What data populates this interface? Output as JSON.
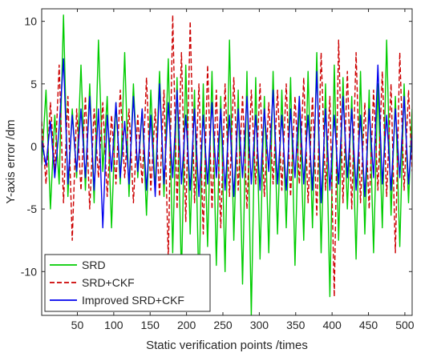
{
  "chart_data": {
    "type": "line",
    "xlabel": "Static verification points /times",
    "ylabel": "Y-axis error /dm",
    "xlim": [
      1,
      510
    ],
    "ylim": [
      -13.5,
      11
    ],
    "xticks": [
      50,
      100,
      150,
      200,
      250,
      300,
      350,
      400,
      450,
      500
    ],
    "yticks": [
      -10,
      -5,
      0,
      5,
      10
    ],
    "grid": false,
    "legend_position": "bottom-left",
    "series": [
      {
        "name": "SRD",
        "color": "#00cc00",
        "line_style": "solid",
        "x": [
          1,
          7,
          13,
          19,
          25,
          31,
          37,
          43,
          49,
          55,
          61,
          67,
          73,
          79,
          85,
          91,
          97,
          103,
          109,
          115,
          121,
          127,
          133,
          139,
          145,
          151,
          157,
          163,
          169,
          175,
          181,
          187,
          193,
          199,
          205,
          211,
          217,
          223,
          229,
          235,
          241,
          247,
          253,
          259,
          265,
          271,
          277,
          283,
          289,
          295,
          301,
          307,
          313,
          319,
          325,
          331,
          337,
          343,
          349,
          355,
          361,
          367,
          373,
          379,
          385,
          391,
          397,
          403,
          409,
          415,
          421,
          427,
          433,
          439,
          445,
          451,
          457,
          463,
          469,
          475,
          481,
          487,
          493,
          499,
          505,
          510
        ],
        "y": [
          -1.5,
          4.5,
          -5.0,
          2.5,
          -3.0,
          10.5,
          -4.0,
          3.0,
          -2.5,
          6.5,
          -3.5,
          5.0,
          -4.5,
          8.5,
          -2.0,
          4.0,
          -6.5,
          3.5,
          -3.0,
          7.5,
          -4.0,
          5.0,
          -2.5,
          3.0,
          -5.5,
          4.5,
          -3.5,
          6.0,
          -4.0,
          7.0,
          -8.5,
          5.5,
          -10.5,
          6.5,
          -7.0,
          4.5,
          -11.5,
          5.0,
          -8.0,
          6.0,
          -9.5,
          4.0,
          -10.0,
          8.5,
          -7.5,
          4.5,
          -11.0,
          6.0,
          -13.5,
          5.5,
          -9.0,
          4.0,
          -8.5,
          6.0,
          -7.0,
          4.5,
          -6.5,
          5.5,
          -9.5,
          4.0,
          -7.5,
          6.0,
          -6.5,
          7.5,
          -8.5,
          5.0,
          -12.0,
          6.5,
          -7.5,
          5.5,
          -5.0,
          4.0,
          -9.0,
          6.0,
          -7.0,
          4.5,
          -8.5,
          5.0,
          -6.5,
          8.5,
          -5.5,
          4.0,
          -8.0,
          5.0,
          -4.5,
          3.0
        ]
      },
      {
        "name": "SRD+CKF",
        "color": "#cc0000",
        "line_style": "dashed",
        "x": [
          1,
          7,
          13,
          19,
          25,
          31,
          37,
          43,
          49,
          55,
          61,
          67,
          73,
          79,
          85,
          91,
          97,
          103,
          109,
          115,
          121,
          127,
          133,
          139,
          145,
          151,
          157,
          163,
          169,
          175,
          181,
          187,
          193,
          199,
          205,
          211,
          217,
          223,
          229,
          235,
          241,
          247,
          253,
          259,
          265,
          271,
          277,
          283,
          289,
          295,
          301,
          307,
          313,
          319,
          325,
          331,
          337,
          343,
          349,
          355,
          361,
          367,
          373,
          379,
          385,
          391,
          397,
          403,
          409,
          415,
          421,
          427,
          433,
          439,
          445,
          451,
          457,
          463,
          469,
          475,
          481,
          487,
          493,
          499,
          505,
          510
        ],
        "y": [
          2.0,
          -3.0,
          3.5,
          -2.0,
          6.5,
          -4.5,
          4.0,
          -7.5,
          3.0,
          -3.5,
          4.0,
          -5.0,
          3.0,
          -2.5,
          3.5,
          -4.0,
          2.5,
          -3.0,
          4.5,
          -2.5,
          3.0,
          -4.5,
          2.5,
          -3.0,
          5.5,
          -3.5,
          3.0,
          -4.0,
          4.5,
          -9.0,
          10.5,
          -5.0,
          7.5,
          -6.0,
          10.0,
          -4.5,
          5.0,
          -7.0,
          6.5,
          -5.0,
          4.5,
          -6.5,
          5.0,
          -4.0,
          5.5,
          -3.5,
          4.0,
          -5.0,
          4.5,
          -3.0,
          5.0,
          -4.0,
          3.5,
          -3.0,
          4.5,
          -3.5,
          5.0,
          -4.0,
          4.0,
          -3.0,
          5.5,
          -4.5,
          4.0,
          -5.5,
          7.5,
          -3.5,
          4.0,
          -12.0,
          8.5,
          -4.5,
          6.0,
          -5.0,
          7.5,
          -4.5,
          3.5,
          -5.0,
          4.5,
          -3.5,
          6.0,
          -4.0,
          5.0,
          -8.5,
          7.5,
          -3.5,
          4.5,
          -2.0
        ]
      },
      {
        "name": "Improved SRD+CKF",
        "color": "#0000ee",
        "line_style": "solid",
        "x": [
          1,
          7,
          13,
          19,
          25,
          31,
          37,
          43,
          49,
          55,
          61,
          67,
          73,
          79,
          85,
          91,
          97,
          103,
          109,
          115,
          121,
          127,
          133,
          139,
          145,
          151,
          157,
          163,
          169,
          175,
          181,
          187,
          193,
          199,
          205,
          211,
          217,
          223,
          229,
          235,
          241,
          247,
          253,
          259,
          265,
          271,
          277,
          283,
          289,
          295,
          301,
          307,
          313,
          319,
          325,
          331,
          337,
          343,
          349,
          355,
          361,
          367,
          373,
          379,
          385,
          391,
          397,
          403,
          409,
          415,
          421,
          427,
          433,
          439,
          445,
          451,
          457,
          463,
          469,
          475,
          481,
          487,
          493,
          499,
          505,
          510
        ],
        "y": [
          0.5,
          -1.5,
          2.0,
          -2.5,
          1.5,
          7.0,
          -3.0,
          2.5,
          -2.0,
          3.0,
          -2.5,
          4.0,
          -3.5,
          3.0,
          -6.5,
          2.5,
          -2.0,
          3.5,
          -2.5,
          2.0,
          -3.0,
          4.0,
          -2.0,
          3.0,
          -3.5,
          2.5,
          -4.0,
          5.0,
          -3.0,
          3.5,
          -2.5,
          4.5,
          -3.0,
          2.5,
          -3.5,
          3.0,
          -4.0,
          2.5,
          -3.0,
          3.5,
          -2.5,
          3.0,
          -3.5,
          2.5,
          -4.0,
          3.0,
          -2.5,
          4.0,
          -3.0,
          2.5,
          -3.5,
          3.0,
          -2.0,
          4.5,
          -3.0,
          2.5,
          -3.5,
          3.0,
          -2.5,
          4.0,
          -3.0,
          2.5,
          -3.5,
          6.0,
          -4.5,
          3.0,
          -3.5,
          2.5,
          -3.0,
          4.0,
          -2.5,
          3.0,
          -3.5,
          2.5,
          -4.0,
          3.0,
          -2.5,
          6.5,
          -3.0,
          2.5,
          -3.5,
          3.0,
          -2.5,
          4.0,
          -3.0,
          1.0
        ]
      }
    ]
  }
}
